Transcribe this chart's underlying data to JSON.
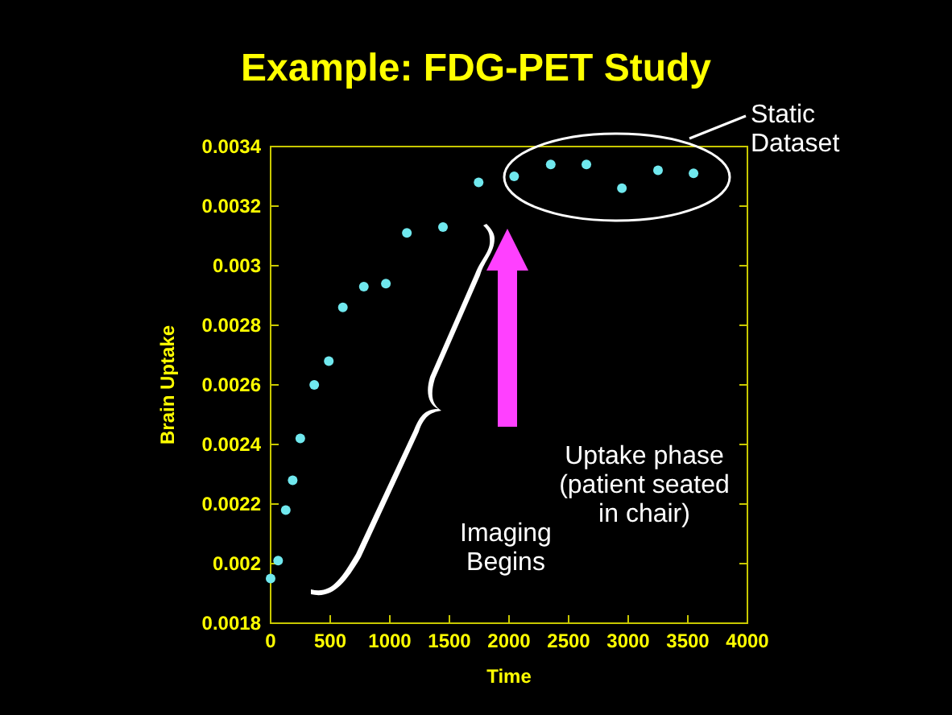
{
  "chart_data": {
    "type": "scatter",
    "title": "Example: FDG-PET Study",
    "xlabel": "Time",
    "ylabel": "Brain Uptake",
    "x": [
      0,
      63,
      127,
      185,
      249,
      366,
      488,
      606,
      782,
      967,
      1143,
      1446,
      1745,
      2043,
      2350,
      2649,
      2947,
      3250,
      3548
    ],
    "series": [
      {
        "color": "#70e8ee",
        "values": [
          0.00195,
          0.00201,
          0.00218,
          0.00228,
          0.00242,
          0.0026,
          0.00268,
          0.00286,
          0.00293,
          0.00294,
          0.00311,
          0.00313,
          0.00328,
          0.0033,
          0.00334,
          0.00334,
          0.00326,
          0.00332,
          0.00331
        ]
      }
    ],
    "xlim": [
      0,
      4000
    ],
    "xticks": [
      0,
      500,
      1000,
      1500,
      2000,
      2500,
      3000,
      3500,
      4000
    ],
    "ylim": [
      0.0018,
      0.0034
    ],
    "yticks": [
      0.0018,
      0.002,
      0.0022,
      0.0024,
      0.0026,
      0.0028,
      0.003,
      0.0032,
      0.0034
    ],
    "marker": "circle",
    "grid": false,
    "annotations": [
      "Static Dataset",
      "Uptake phase (patient seated in chair)",
      "Imaging Begins"
    ]
  }
}
